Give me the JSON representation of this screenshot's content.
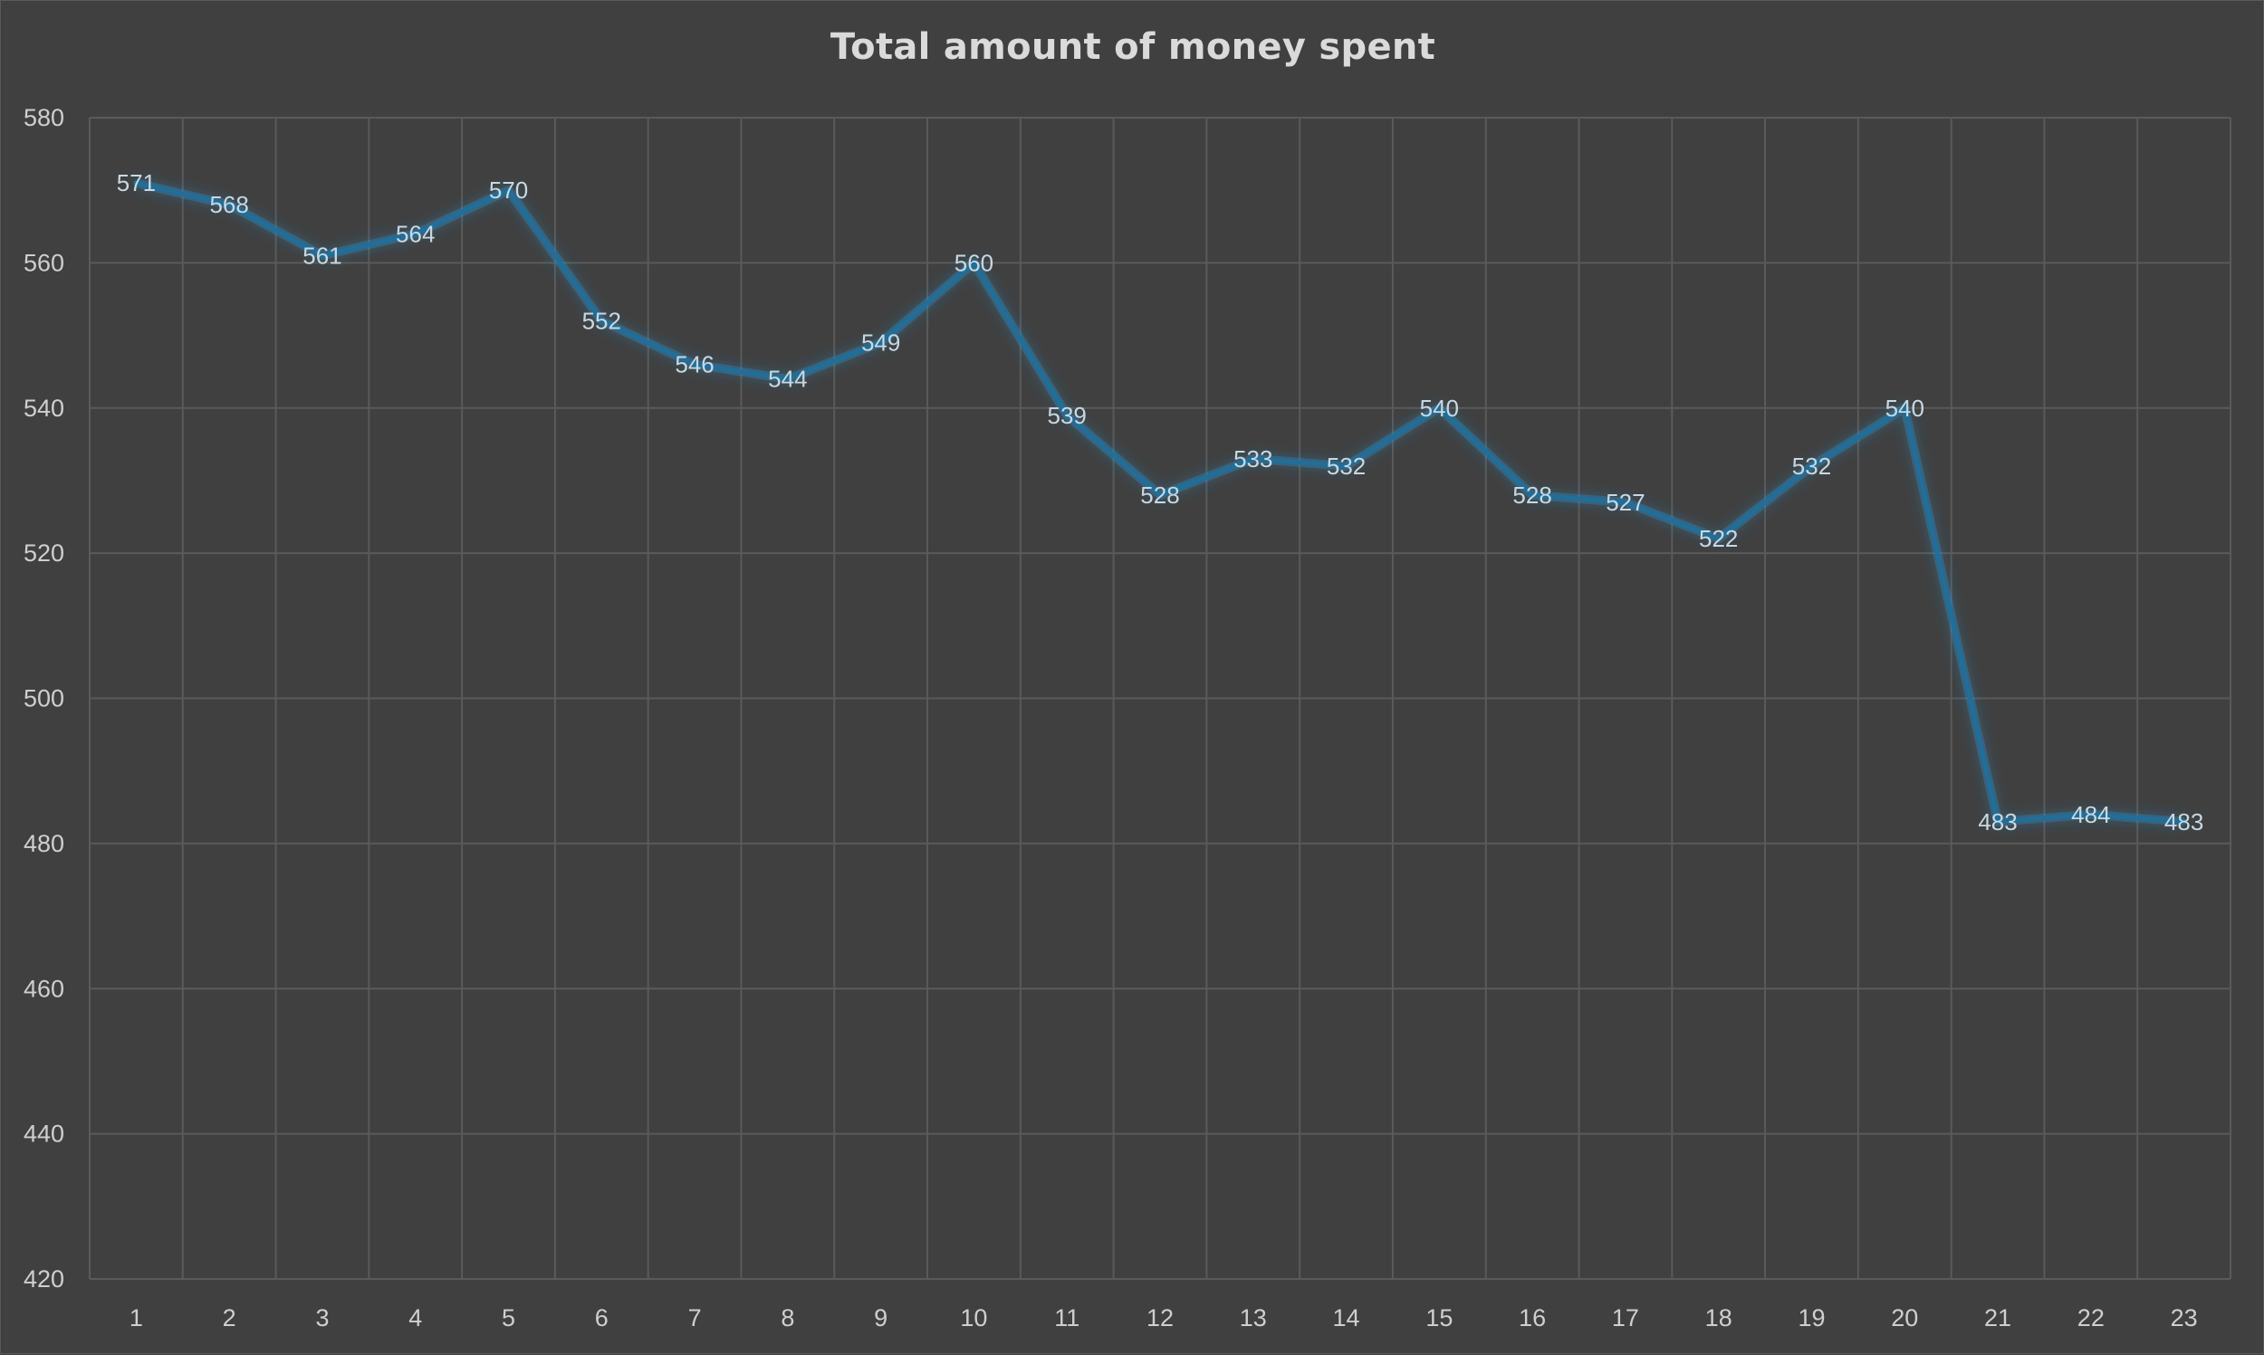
{
  "chart_data": {
    "type": "line",
    "title": "Total amount of money spent",
    "xlabel": "",
    "ylabel": "",
    "categories": [
      "1",
      "2",
      "3",
      "4",
      "5",
      "6",
      "7",
      "8",
      "9",
      "10",
      "11",
      "12",
      "13",
      "14",
      "15",
      "16",
      "17",
      "18",
      "19",
      "20",
      "21",
      "22",
      "23"
    ],
    "series": [
      {
        "values": [
          571,
          568,
          561,
          564,
          570,
          552,
          546,
          544,
          549,
          560,
          539,
          528,
          533,
          532,
          540,
          528,
          527,
          522,
          532,
          540,
          483,
          484,
          483
        ]
      }
    ],
    "ylim": [
      420,
      580
    ],
    "yticks": [
      "420",
      "440",
      "460",
      "480",
      "500",
      "520",
      "540",
      "560",
      "580"
    ],
    "grid": true,
    "legend": "none",
    "data_labels": true,
    "colors": {
      "background": "#404040",
      "line": "#1f6f9a",
      "glow": "#2a8cc4",
      "grid": "#5a5a5a",
      "text": "#cfcfcf"
    }
  }
}
